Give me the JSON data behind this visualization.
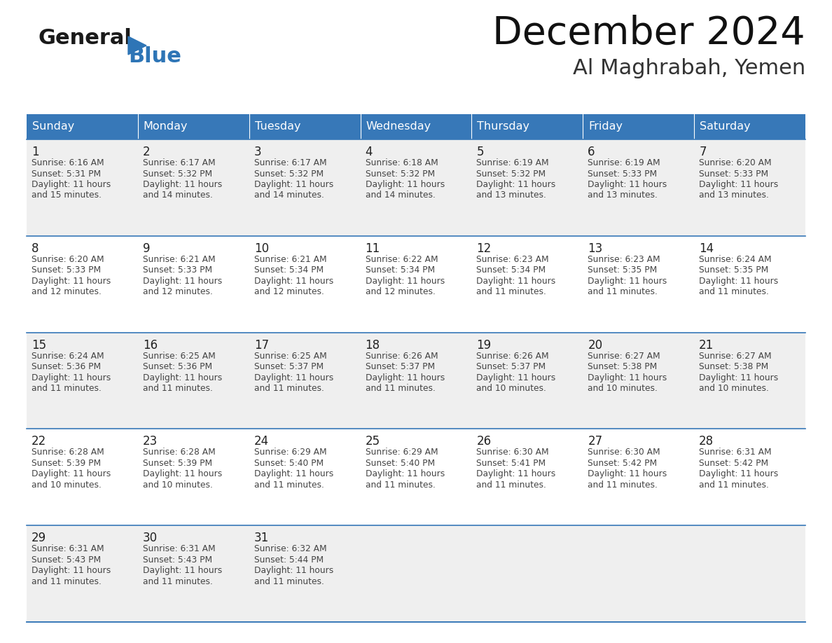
{
  "title": "December 2024",
  "subtitle": "Al Maghrabah, Yemen",
  "days_of_week": [
    "Sunday",
    "Monday",
    "Tuesday",
    "Wednesday",
    "Thursday",
    "Friday",
    "Saturday"
  ],
  "header_bg_color": "#3778B8",
  "header_text_color": "#FFFFFF",
  "cell_bg_light": "#EFEFEF",
  "cell_bg_white": "#FFFFFF",
  "row_line_color": "#3778B8",
  "text_color": "#444444",
  "day_number_color": "#222222",
  "logo_color_general": "#1a1a1a",
  "logo_color_blue": "#2E75B6",
  "logo_triangle_color": "#2E75B6",
  "calendar_data": [
    [
      {
        "day": 1,
        "sunrise": "6:16 AM",
        "sunset": "5:31 PM",
        "daylight": "11 hours and 15 minutes."
      },
      {
        "day": 2,
        "sunrise": "6:17 AM",
        "sunset": "5:32 PM",
        "daylight": "11 hours and 14 minutes."
      },
      {
        "day": 3,
        "sunrise": "6:17 AM",
        "sunset": "5:32 PM",
        "daylight": "11 hours and 14 minutes."
      },
      {
        "day": 4,
        "sunrise": "6:18 AM",
        "sunset": "5:32 PM",
        "daylight": "11 hours and 14 minutes."
      },
      {
        "day": 5,
        "sunrise": "6:19 AM",
        "sunset": "5:32 PM",
        "daylight": "11 hours and 13 minutes."
      },
      {
        "day": 6,
        "sunrise": "6:19 AM",
        "sunset": "5:33 PM",
        "daylight": "11 hours and 13 minutes."
      },
      {
        "day": 7,
        "sunrise": "6:20 AM",
        "sunset": "5:33 PM",
        "daylight": "11 hours and 13 minutes."
      }
    ],
    [
      {
        "day": 8,
        "sunrise": "6:20 AM",
        "sunset": "5:33 PM",
        "daylight": "11 hours and 12 minutes."
      },
      {
        "day": 9,
        "sunrise": "6:21 AM",
        "sunset": "5:33 PM",
        "daylight": "11 hours and 12 minutes."
      },
      {
        "day": 10,
        "sunrise": "6:21 AM",
        "sunset": "5:34 PM",
        "daylight": "11 hours and 12 minutes."
      },
      {
        "day": 11,
        "sunrise": "6:22 AM",
        "sunset": "5:34 PM",
        "daylight": "11 hours and 12 minutes."
      },
      {
        "day": 12,
        "sunrise": "6:23 AM",
        "sunset": "5:34 PM",
        "daylight": "11 hours and 11 minutes."
      },
      {
        "day": 13,
        "sunrise": "6:23 AM",
        "sunset": "5:35 PM",
        "daylight": "11 hours and 11 minutes."
      },
      {
        "day": 14,
        "sunrise": "6:24 AM",
        "sunset": "5:35 PM",
        "daylight": "11 hours and 11 minutes."
      }
    ],
    [
      {
        "day": 15,
        "sunrise": "6:24 AM",
        "sunset": "5:36 PM",
        "daylight": "11 hours and 11 minutes."
      },
      {
        "day": 16,
        "sunrise": "6:25 AM",
        "sunset": "5:36 PM",
        "daylight": "11 hours and 11 minutes."
      },
      {
        "day": 17,
        "sunrise": "6:25 AM",
        "sunset": "5:37 PM",
        "daylight": "11 hours and 11 minutes."
      },
      {
        "day": 18,
        "sunrise": "6:26 AM",
        "sunset": "5:37 PM",
        "daylight": "11 hours and 11 minutes."
      },
      {
        "day": 19,
        "sunrise": "6:26 AM",
        "sunset": "5:37 PM",
        "daylight": "11 hours and 10 minutes."
      },
      {
        "day": 20,
        "sunrise": "6:27 AM",
        "sunset": "5:38 PM",
        "daylight": "11 hours and 10 minutes."
      },
      {
        "day": 21,
        "sunrise": "6:27 AM",
        "sunset": "5:38 PM",
        "daylight": "11 hours and 10 minutes."
      }
    ],
    [
      {
        "day": 22,
        "sunrise": "6:28 AM",
        "sunset": "5:39 PM",
        "daylight": "11 hours and 10 minutes."
      },
      {
        "day": 23,
        "sunrise": "6:28 AM",
        "sunset": "5:39 PM",
        "daylight": "11 hours and 10 minutes."
      },
      {
        "day": 24,
        "sunrise": "6:29 AM",
        "sunset": "5:40 PM",
        "daylight": "11 hours and 11 minutes."
      },
      {
        "day": 25,
        "sunrise": "6:29 AM",
        "sunset": "5:40 PM",
        "daylight": "11 hours and 11 minutes."
      },
      {
        "day": 26,
        "sunrise": "6:30 AM",
        "sunset": "5:41 PM",
        "daylight": "11 hours and 11 minutes."
      },
      {
        "day": 27,
        "sunrise": "6:30 AM",
        "sunset": "5:42 PM",
        "daylight": "11 hours and 11 minutes."
      },
      {
        "day": 28,
        "sunrise": "6:31 AM",
        "sunset": "5:42 PM",
        "daylight": "11 hours and 11 minutes."
      }
    ],
    [
      {
        "day": 29,
        "sunrise": "6:31 AM",
        "sunset": "5:43 PM",
        "daylight": "11 hours and 11 minutes."
      },
      {
        "day": 30,
        "sunrise": "6:31 AM",
        "sunset": "5:43 PM",
        "daylight": "11 hours and 11 minutes."
      },
      {
        "day": 31,
        "sunrise": "6:32 AM",
        "sunset": "5:44 PM",
        "daylight": "11 hours and 11 minutes."
      },
      null,
      null,
      null,
      null
    ]
  ]
}
